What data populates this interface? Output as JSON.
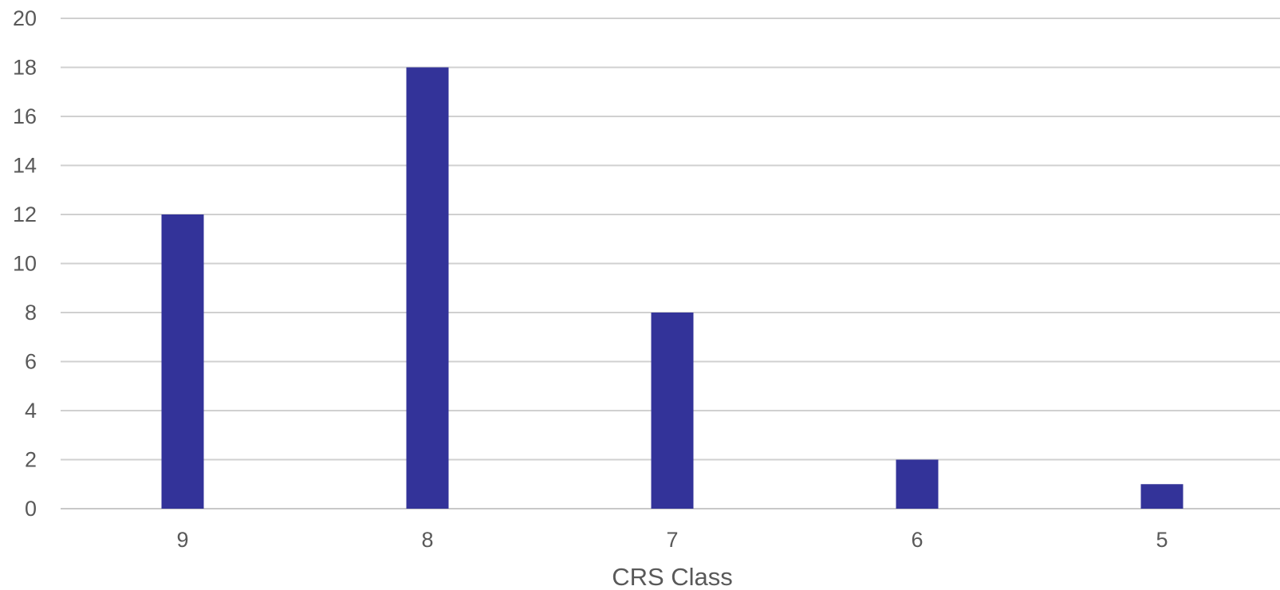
{
  "chart_data": {
    "type": "bar",
    "title": "",
    "xlabel": "CRS Class",
    "ylabel": "",
    "categories": [
      "9",
      "8",
      "7",
      "6",
      "5"
    ],
    "values": [
      12,
      18,
      8,
      2,
      1
    ],
    "ylim": [
      0,
      20
    ],
    "yticks": [
      "0",
      "2",
      "4",
      "6",
      "8",
      "10",
      "12",
      "14",
      "16",
      "18",
      "20"
    ],
    "grid": true,
    "legend": "none",
    "bar_color": "#333399",
    "grid_color": "#d0d0d0",
    "text_color": "#595959"
  }
}
